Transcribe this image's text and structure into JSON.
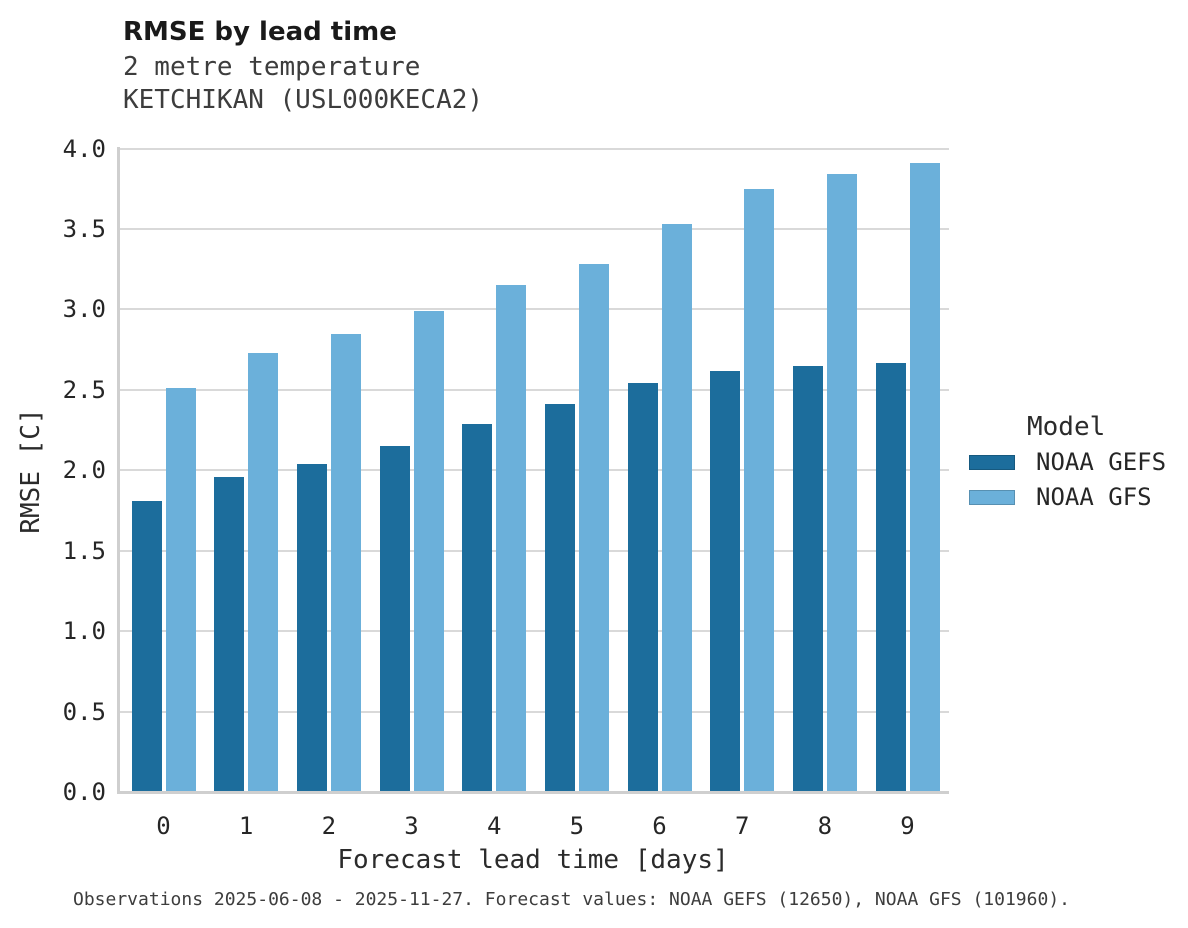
{
  "header": {
    "title": "RMSE by lead time",
    "subtitle_line1": "2 metre temperature",
    "subtitle_line2": "KETCHIKAN (USL000KECA2)"
  },
  "chart_data": {
    "type": "bar",
    "title": "RMSE by lead time",
    "subtitle": "2 metre temperature, KETCHIKAN (USL000KECA2)",
    "xlabel": "Forecast lead time [days]",
    "ylabel": "RMSE [C]",
    "categories": [
      "0",
      "1",
      "2",
      "3",
      "4",
      "5",
      "6",
      "7",
      "8",
      "9"
    ],
    "series": [
      {
        "name": "NOAA GEFS",
        "color": "#1c6d9c",
        "values": [
          1.81,
          1.96,
          2.04,
          2.15,
          2.29,
          2.41,
          2.54,
          2.62,
          2.65,
          2.67
        ]
      },
      {
        "name": "NOAA GFS",
        "color": "#6bb0da",
        "values": [
          2.51,
          2.73,
          2.85,
          2.99,
          3.15,
          3.28,
          3.53,
          3.75,
          3.84,
          3.91
        ]
      }
    ],
    "ylim": [
      0.0,
      4.0
    ],
    "yticks": [
      "0.0",
      "0.5",
      "1.0",
      "1.5",
      "2.0",
      "2.5",
      "3.0",
      "3.5",
      "4.0"
    ],
    "grid": true,
    "legend_title": "Model",
    "legend_position": "right",
    "gridline_color": "#d9d9d9",
    "spine_color": "#cfcfcf"
  },
  "footer": {
    "note": "Observations 2025-06-08 - 2025-11-27. Forecast values: NOAA GEFS (12650), NOAA GFS (101960)."
  }
}
